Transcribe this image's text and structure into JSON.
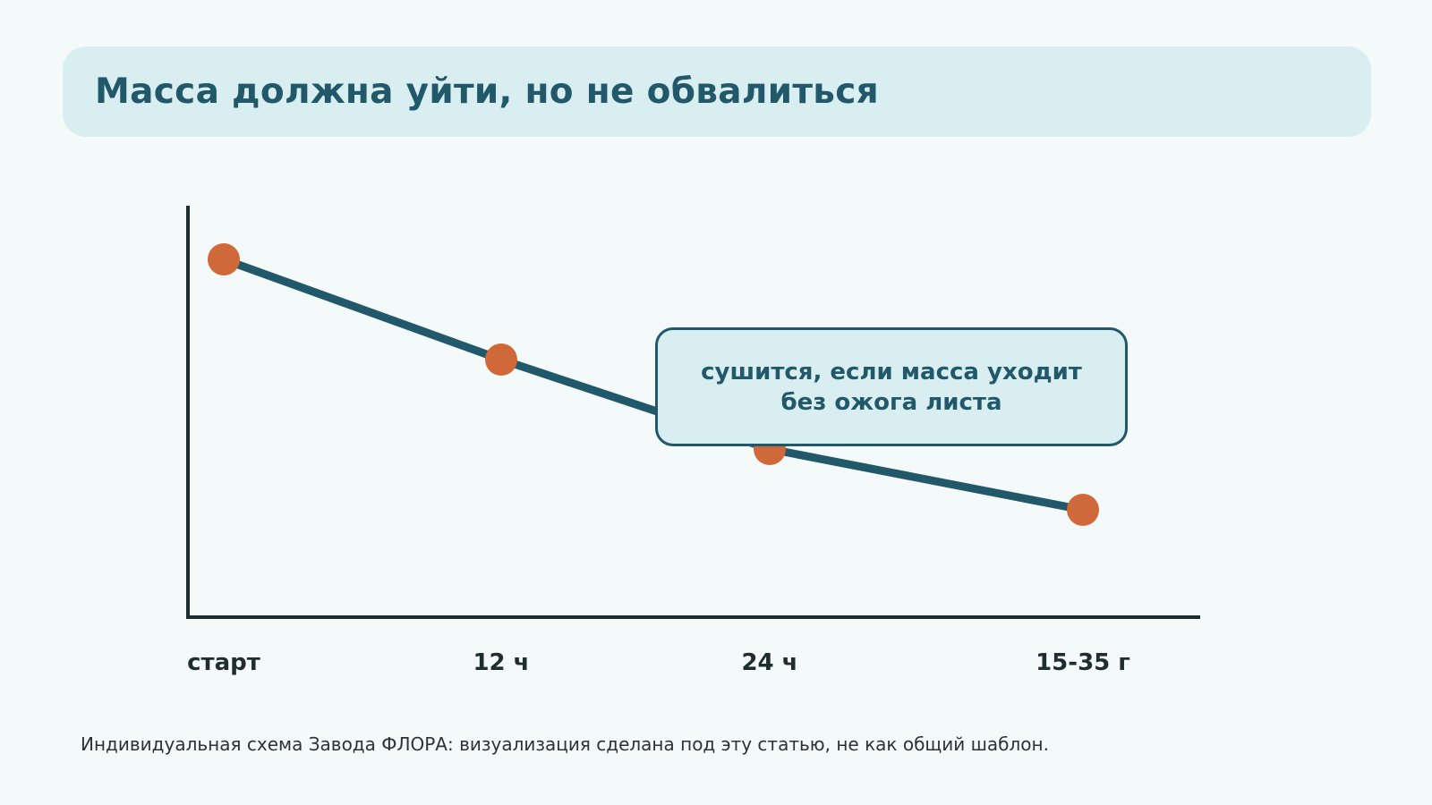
{
  "title": "Масса должна уйти, но не обвалиться",
  "chart_data": {
    "type": "line",
    "title": "",
    "xlabel": "",
    "ylabel": "",
    "categories": [
      "старт",
      "12 ч",
      "24 ч",
      "15-35 г"
    ],
    "series": [
      {
        "values": [
          100,
          72,
          47,
          30
        ]
      }
    ],
    "ylim": [
      0,
      115
    ],
    "grid": false,
    "legend": "none",
    "colors": {
      "line": "#21596a",
      "marker": "#d0693a",
      "axis": "#1f2d2f"
    }
  },
  "callout": {
    "line1": "сушится, если масса уходит",
    "line2": "без ожога листа"
  },
  "footnote": "Индивидуальная схема Завода ФЛОРА: визуализация сделана под эту статью, не как общий шаблон."
}
